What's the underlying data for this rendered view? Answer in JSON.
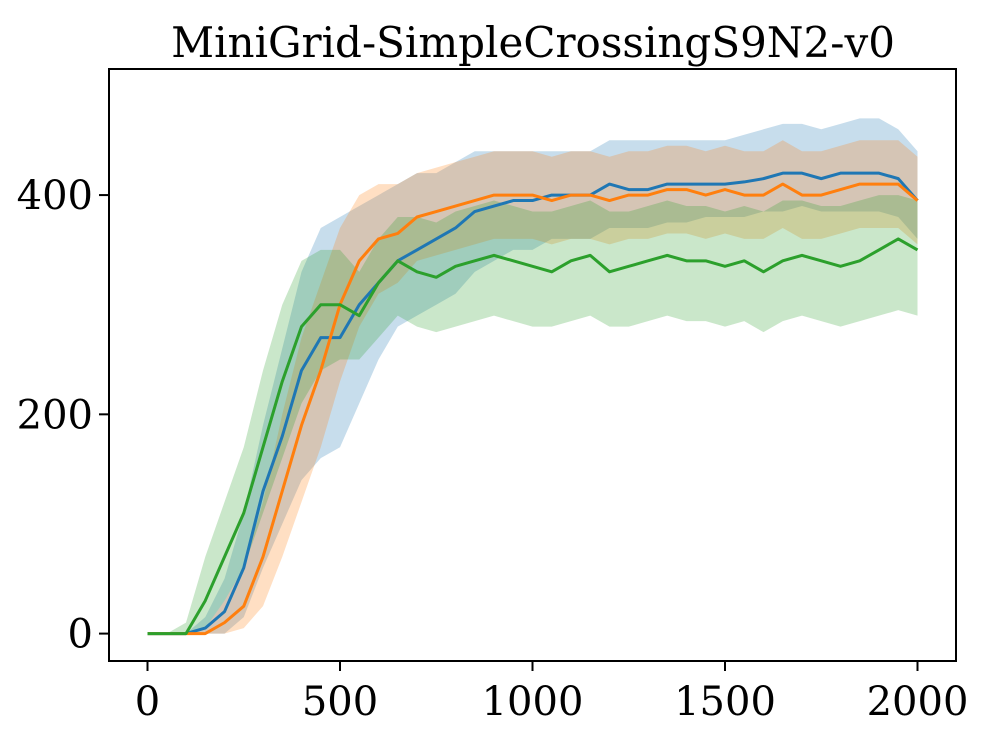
{
  "chart_data": {
    "type": "line",
    "title": "MiniGrid-SimpleCrossingS9N2-v0",
    "xlabel": "",
    "ylabel": "",
    "xlim": [
      -100,
      2100
    ],
    "ylim": [
      -25,
      515
    ],
    "xticks": [
      0,
      500,
      1000,
      1500,
      2000
    ],
    "yticks": [
      0,
      200,
      400
    ],
    "xtick_labels": [
      "0",
      "500",
      "1000",
      "1500",
      "2000"
    ],
    "ytick_labels": [
      "0",
      "200",
      "400"
    ],
    "grid": false,
    "legend": null,
    "series": [
      {
        "name": "blue",
        "color": "#1f77b4",
        "x": [
          0,
          50,
          100,
          150,
          200,
          250,
          300,
          350,
          400,
          450,
          500,
          550,
          600,
          650,
          700,
          750,
          800,
          850,
          900,
          950,
          1000,
          1050,
          1100,
          1150,
          1200,
          1250,
          1300,
          1350,
          1400,
          1450,
          1500,
          1550,
          1600,
          1650,
          1700,
          1750,
          1800,
          1850,
          1900,
          1950,
          2000
        ],
        "mean": [
          0,
          0,
          0,
          5,
          20,
          60,
          130,
          180,
          240,
          270,
          270,
          300,
          320,
          340,
          350,
          360,
          370,
          385,
          390,
          395,
          395,
          400,
          400,
          400,
          410,
          405,
          405,
          410,
          410,
          410,
          410,
          412,
          415,
          420,
          420,
          415,
          420,
          420,
          420,
          415,
          395
        ],
        "lower": [
          0,
          0,
          0,
          0,
          0,
          15,
          60,
          100,
          140,
          160,
          170,
          210,
          250,
          280,
          290,
          300,
          310,
          330,
          340,
          350,
          350,
          360,
          360,
          360,
          370,
          370,
          370,
          375,
          375,
          380,
          380,
          380,
          385,
          385,
          390,
          385,
          385,
          385,
          385,
          380,
          360
        ],
        "upper": [
          0,
          0,
          0,
          15,
          50,
          110,
          190,
          260,
          330,
          370,
          380,
          390,
          400,
          410,
          420,
          420,
          430,
          440,
          440,
          440,
          440,
          440,
          440,
          440,
          450,
          450,
          450,
          450,
          450,
          450,
          450,
          455,
          460,
          465,
          465,
          460,
          465,
          470,
          470,
          460,
          440
        ]
      },
      {
        "name": "orange",
        "color": "#ff7f0e",
        "x": [
          0,
          50,
          100,
          150,
          200,
          250,
          300,
          350,
          400,
          450,
          500,
          550,
          600,
          650,
          700,
          750,
          800,
          850,
          900,
          950,
          1000,
          1050,
          1100,
          1150,
          1200,
          1250,
          1300,
          1350,
          1400,
          1450,
          1500,
          1550,
          1600,
          1650,
          1700,
          1750,
          1800,
          1850,
          1900,
          1950,
          2000
        ],
        "mean": [
          0,
          0,
          0,
          0,
          10,
          25,
          70,
          130,
          190,
          240,
          300,
          340,
          360,
          365,
          380,
          385,
          390,
          395,
          400,
          400,
          400,
          395,
          400,
          400,
          395,
          400,
          400,
          405,
          405,
          400,
          405,
          400,
          400,
          410,
          400,
          400,
          405,
          410,
          410,
          410,
          395
        ],
        "lower": [
          0,
          0,
          0,
          0,
          0,
          5,
          25,
          70,
          120,
          170,
          230,
          280,
          310,
          320,
          340,
          345,
          350,
          355,
          360,
          360,
          360,
          355,
          360,
          360,
          355,
          360,
          360,
          365,
          365,
          360,
          365,
          360,
          360,
          370,
          360,
          360,
          365,
          370,
          370,
          370,
          355
        ],
        "upper": [
          0,
          0,
          0,
          5,
          30,
          60,
          120,
          200,
          270,
          320,
          370,
          400,
          410,
          410,
          420,
          425,
          430,
          435,
          440,
          440,
          440,
          435,
          440,
          440,
          435,
          440,
          440,
          445,
          445,
          440,
          445,
          440,
          440,
          450,
          440,
          440,
          445,
          450,
          450,
          450,
          435
        ]
      },
      {
        "name": "green",
        "color": "#2ca02c",
        "x": [
          0,
          50,
          100,
          150,
          200,
          250,
          300,
          350,
          400,
          450,
          500,
          550,
          600,
          650,
          700,
          750,
          800,
          850,
          900,
          950,
          1000,
          1050,
          1100,
          1150,
          1200,
          1250,
          1300,
          1350,
          1400,
          1450,
          1500,
          1550,
          1600,
          1650,
          1700,
          1750,
          1800,
          1850,
          1900,
          1950,
          2000
        ],
        "mean": [
          0,
          0,
          0,
          30,
          70,
          110,
          170,
          230,
          280,
          300,
          300,
          290,
          320,
          340,
          330,
          325,
          335,
          340,
          345,
          340,
          335,
          330,
          340,
          345,
          330,
          335,
          340,
          345,
          340,
          340,
          335,
          340,
          330,
          340,
          345,
          340,
          335,
          340,
          350,
          360,
          350
        ],
        "lower": [
          0,
          0,
          0,
          5,
          30,
          60,
          110,
          160,
          210,
          240,
          250,
          250,
          270,
          290,
          280,
          275,
          280,
          285,
          290,
          285,
          280,
          280,
          285,
          290,
          280,
          280,
          285,
          290,
          285,
          285,
          280,
          285,
          275,
          285,
          290,
          285,
          280,
          285,
          290,
          295,
          290
        ],
        "upper": [
          0,
          0,
          10,
          70,
          120,
          170,
          240,
          300,
          340,
          350,
          350,
          330,
          360,
          380,
          380,
          375,
          385,
          390,
          395,
          390,
          385,
          385,
          390,
          395,
          385,
          385,
          390,
          395,
          390,
          390,
          385,
          390,
          385,
          395,
          395,
          390,
          390,
          395,
          400,
          400,
          395
        ]
      }
    ]
  }
}
